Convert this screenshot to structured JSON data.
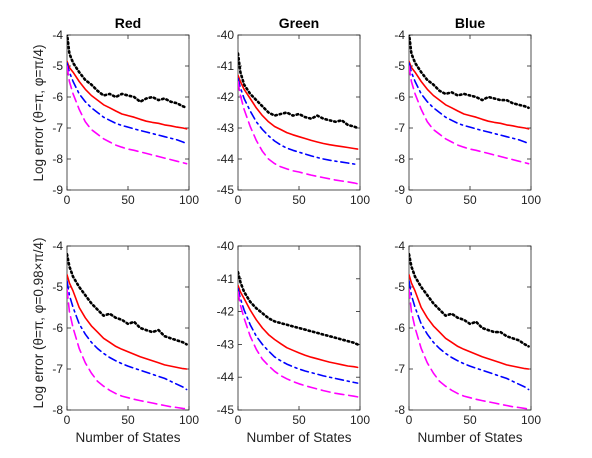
{
  "figure": {
    "ylabels": [
      "Log error (θ=π, φ=π/4)",
      "Log error (θ=π, φ=0.98×π/4)"
    ],
    "xlabel": "Number of States",
    "titles": [
      "Red",
      "Green",
      "Blue"
    ]
  },
  "chart_data": [
    {
      "type": "line",
      "title": "Red",
      "xlabel": "",
      "ylabel": "Log error (θ=π, φ=π/4)",
      "xlim": [
        0,
        100
      ],
      "ylim": [
        -9,
        -4
      ],
      "xticks": [
        0,
        50,
        100
      ],
      "yticks": [
        -9,
        -8,
        -7,
        -6,
        -5,
        -4
      ],
      "grid": false,
      "x": [
        0,
        2,
        5,
        10,
        15,
        20,
        25,
        30,
        35,
        40,
        45,
        50,
        55,
        60,
        65,
        70,
        75,
        80,
        85,
        90,
        95,
        98
      ],
      "series": [
        {
          "color": "#000000",
          "dash": "dotted",
          "values": [
            -3.95,
            -4.6,
            -4.9,
            -5.2,
            -5.45,
            -5.6,
            -5.8,
            -5.95,
            -5.9,
            -6.0,
            -5.9,
            -5.95,
            -6.0,
            -6.15,
            -6.05,
            -6.0,
            -6.1,
            -6.05,
            -6.15,
            -6.2,
            -6.3,
            -6.35
          ]
        },
        {
          "color": "#ff0000",
          "dash": "solid",
          "values": [
            -4.85,
            -5.05,
            -5.2,
            -5.5,
            -5.75,
            -5.95,
            -6.1,
            -6.25,
            -6.35,
            -6.45,
            -6.55,
            -6.6,
            -6.65,
            -6.72,
            -6.78,
            -6.82,
            -6.85,
            -6.9,
            -6.93,
            -6.97,
            -7.0,
            -7.03
          ]
        },
        {
          "color": "#0000ff",
          "dash": "dashdot",
          "values": [
            -4.9,
            -5.2,
            -5.5,
            -5.9,
            -6.15,
            -6.35,
            -6.5,
            -6.65,
            -6.75,
            -6.85,
            -6.92,
            -6.97,
            -7.03,
            -7.08,
            -7.13,
            -7.18,
            -7.23,
            -7.28,
            -7.33,
            -7.38,
            -7.45,
            -7.5
          ]
        },
        {
          "color": "#ff00ff",
          "dash": "dashed",
          "values": [
            -5.0,
            -5.5,
            -5.9,
            -6.4,
            -6.8,
            -7.05,
            -7.2,
            -7.35,
            -7.45,
            -7.55,
            -7.62,
            -7.68,
            -7.72,
            -7.77,
            -7.82,
            -7.87,
            -7.92,
            -7.97,
            -8.02,
            -8.07,
            -8.12,
            -8.15
          ]
        }
      ]
    },
    {
      "type": "line",
      "title": "Green",
      "xlabel": "",
      "ylabel": "",
      "xlim": [
        0,
        100
      ],
      "ylim": [
        -45,
        -40
      ],
      "xticks": [
        0,
        50,
        100
      ],
      "yticks": [
        -45,
        -44,
        -43,
        -42,
        -41,
        -40
      ],
      "grid": false,
      "x": [
        0,
        2,
        5,
        10,
        15,
        20,
        25,
        30,
        35,
        40,
        45,
        50,
        55,
        60,
        65,
        70,
        75,
        80,
        85,
        90,
        95,
        98
      ],
      "series": [
        {
          "color": "#000000",
          "dash": "dotted",
          "values": [
            -40.6,
            -41.2,
            -41.6,
            -41.9,
            -42.1,
            -42.3,
            -42.5,
            -42.6,
            -42.55,
            -42.5,
            -42.6,
            -42.55,
            -42.65,
            -42.7,
            -42.6,
            -42.7,
            -42.75,
            -42.8,
            -42.75,
            -42.9,
            -42.95,
            -43.0
          ]
        },
        {
          "color": "#ff0000",
          "dash": "solid",
          "values": [
            -41.3,
            -41.5,
            -41.75,
            -42.05,
            -42.35,
            -42.6,
            -42.8,
            -42.95,
            -43.05,
            -43.15,
            -43.22,
            -43.28,
            -43.34,
            -43.4,
            -43.45,
            -43.5,
            -43.54,
            -43.57,
            -43.6,
            -43.63,
            -43.66,
            -43.68
          ]
        },
        {
          "color": "#0000ff",
          "dash": "dashdot",
          "values": [
            -41.4,
            -41.7,
            -42.05,
            -42.45,
            -42.8,
            -43.05,
            -43.25,
            -43.42,
            -43.55,
            -43.65,
            -43.72,
            -43.78,
            -43.84,
            -43.9,
            -43.95,
            -44.0,
            -44.04,
            -44.07,
            -44.1,
            -44.13,
            -44.16,
            -44.18
          ]
        },
        {
          "color": "#ff00ff",
          "dash": "dashed",
          "values": [
            -41.5,
            -41.95,
            -42.4,
            -42.95,
            -43.4,
            -43.75,
            -44.0,
            -44.15,
            -44.25,
            -44.32,
            -44.38,
            -44.42,
            -44.47,
            -44.52,
            -44.56,
            -44.6,
            -44.64,
            -44.68,
            -44.71,
            -44.74,
            -44.77,
            -44.8
          ]
        }
      ]
    },
    {
      "type": "line",
      "title": "Blue",
      "xlabel": "",
      "ylabel": "",
      "xlim": [
        0,
        100
      ],
      "ylim": [
        -9,
        -4
      ],
      "xticks": [
        0,
        50,
        100
      ],
      "yticks": [
        -9,
        -8,
        -7,
        -6,
        -5,
        -4
      ],
      "grid": false,
      "x": [
        0,
        2,
        5,
        10,
        15,
        20,
        25,
        30,
        35,
        40,
        45,
        50,
        55,
        60,
        65,
        70,
        75,
        80,
        85,
        90,
        95,
        98
      ],
      "series": [
        {
          "color": "#000000",
          "dash": "dotted",
          "values": [
            -3.95,
            -4.6,
            -4.9,
            -5.2,
            -5.45,
            -5.6,
            -5.8,
            -5.9,
            -5.85,
            -5.95,
            -5.9,
            -5.95,
            -6.0,
            -6.1,
            -6.0,
            -6.05,
            -6.1,
            -6.1,
            -6.2,
            -6.25,
            -6.3,
            -6.35
          ]
        },
        {
          "color": "#ff0000",
          "dash": "solid",
          "values": [
            -4.85,
            -5.05,
            -5.2,
            -5.5,
            -5.75,
            -5.95,
            -6.1,
            -6.25,
            -6.35,
            -6.45,
            -6.55,
            -6.6,
            -6.65,
            -6.72,
            -6.78,
            -6.82,
            -6.85,
            -6.9,
            -6.93,
            -6.97,
            -7.0,
            -7.03
          ]
        },
        {
          "color": "#0000ff",
          "dash": "dashdot",
          "values": [
            -4.9,
            -5.2,
            -5.5,
            -5.9,
            -6.15,
            -6.35,
            -6.5,
            -6.65,
            -6.75,
            -6.85,
            -6.92,
            -6.97,
            -7.03,
            -7.08,
            -7.13,
            -7.18,
            -7.23,
            -7.28,
            -7.33,
            -7.38,
            -7.45,
            -7.5
          ]
        },
        {
          "color": "#ff00ff",
          "dash": "dashed",
          "values": [
            -5.0,
            -5.5,
            -5.9,
            -6.4,
            -6.8,
            -7.05,
            -7.2,
            -7.35,
            -7.45,
            -7.55,
            -7.62,
            -7.68,
            -7.72,
            -7.77,
            -7.82,
            -7.87,
            -7.92,
            -7.97,
            -8.02,
            -8.07,
            -8.12,
            -8.15
          ]
        }
      ]
    },
    {
      "type": "line",
      "title": "",
      "xlabel": "Number of States",
      "ylabel": "Log error (θ=π, φ=0.98×π/4)",
      "xlim": [
        0,
        100
      ],
      "ylim": [
        -8,
        -4
      ],
      "xticks": [
        0,
        50,
        100
      ],
      "yticks": [
        -8,
        -7,
        -6,
        -5,
        -4
      ],
      "grid": false,
      "x": [
        0,
        2,
        5,
        10,
        15,
        20,
        25,
        30,
        35,
        40,
        45,
        50,
        55,
        60,
        65,
        70,
        75,
        80,
        85,
        90,
        95,
        98
      ],
      "series": [
        {
          "color": "#000000",
          "dash": "dotted",
          "values": [
            -4.2,
            -4.5,
            -4.75,
            -5.0,
            -5.2,
            -5.4,
            -5.55,
            -5.7,
            -5.65,
            -5.75,
            -5.8,
            -5.9,
            -5.85,
            -6.0,
            -6.05,
            -6.1,
            -6.05,
            -6.2,
            -6.25,
            -6.3,
            -6.35,
            -6.4
          ]
        },
        {
          "color": "#ff0000",
          "dash": "solid",
          "values": [
            -4.7,
            -4.9,
            -5.1,
            -5.5,
            -5.75,
            -5.95,
            -6.1,
            -6.25,
            -6.35,
            -6.45,
            -6.52,
            -6.58,
            -6.64,
            -6.7,
            -6.75,
            -6.8,
            -6.85,
            -6.9,
            -6.93,
            -6.96,
            -6.99,
            -7.0
          ]
        },
        {
          "color": "#0000ff",
          "dash": "dashdot",
          "values": [
            -4.85,
            -5.2,
            -5.5,
            -5.9,
            -6.15,
            -6.35,
            -6.5,
            -6.62,
            -6.72,
            -6.8,
            -6.87,
            -6.93,
            -6.98,
            -7.03,
            -7.08,
            -7.13,
            -7.18,
            -7.23,
            -7.3,
            -7.37,
            -7.44,
            -7.5
          ]
        },
        {
          "color": "#ff00ff",
          "dash": "dashed",
          "values": [
            -5.05,
            -5.6,
            -6.0,
            -6.5,
            -6.85,
            -7.1,
            -7.3,
            -7.42,
            -7.52,
            -7.6,
            -7.66,
            -7.7,
            -7.74,
            -7.77,
            -7.8,
            -7.83,
            -7.86,
            -7.89,
            -7.92,
            -7.94,
            -7.96,
            -7.97
          ]
        }
      ]
    },
    {
      "type": "line",
      "title": "",
      "xlabel": "Number of States",
      "ylabel": "",
      "xlim": [
        0,
        100
      ],
      "ylim": [
        -45,
        -40
      ],
      "xticks": [
        0,
        50,
        100
      ],
      "yticks": [
        -45,
        -44,
        -43,
        -42,
        -41,
        -40
      ],
      "grid": false,
      "x": [
        0,
        2,
        5,
        10,
        15,
        20,
        25,
        30,
        35,
        40,
        45,
        50,
        55,
        60,
        65,
        70,
        75,
        80,
        85,
        90,
        95,
        98
      ],
      "series": [
        {
          "color": "#000000",
          "dash": "dotted",
          "values": [
            -40.8,
            -41.1,
            -41.4,
            -41.7,
            -41.9,
            -42.05,
            -42.2,
            -42.3,
            -42.35,
            -42.4,
            -42.45,
            -42.5,
            -42.55,
            -42.6,
            -42.65,
            -42.7,
            -42.75,
            -42.8,
            -42.85,
            -42.9,
            -42.95,
            -43.0
          ]
        },
        {
          "color": "#ff0000",
          "dash": "solid",
          "values": [
            -41.2,
            -41.4,
            -41.6,
            -41.95,
            -42.25,
            -42.5,
            -42.7,
            -42.85,
            -42.98,
            -43.1,
            -43.18,
            -43.26,
            -43.33,
            -43.39,
            -43.44,
            -43.49,
            -43.54,
            -43.58,
            -43.62,
            -43.66,
            -43.68,
            -43.7
          ]
        },
        {
          "color": "#0000ff",
          "dash": "dashdot",
          "values": [
            -41.3,
            -41.6,
            -41.95,
            -42.4,
            -42.75,
            -43.0,
            -43.2,
            -43.38,
            -43.5,
            -43.6,
            -43.68,
            -43.75,
            -43.81,
            -43.86,
            -43.91,
            -43.96,
            -44.0,
            -44.04,
            -44.08,
            -44.12,
            -44.16,
            -44.18
          ]
        },
        {
          "color": "#ff00ff",
          "dash": "dashed",
          "values": [
            -41.4,
            -41.8,
            -42.2,
            -42.75,
            -43.15,
            -43.45,
            -43.65,
            -43.82,
            -43.95,
            -44.05,
            -44.13,
            -44.2,
            -44.26,
            -44.31,
            -44.36,
            -44.41,
            -44.45,
            -44.49,
            -44.52,
            -44.55,
            -44.58,
            -44.6
          ]
        }
      ]
    },
    {
      "type": "line",
      "title": "",
      "xlabel": "Number of States",
      "ylabel": "",
      "xlim": [
        0,
        100
      ],
      "ylim": [
        -8,
        -4
      ],
      "xticks": [
        0,
        50,
        100
      ],
      "yticks": [
        -8,
        -7,
        -6,
        -5,
        -4
      ],
      "grid": false,
      "x": [
        0,
        2,
        5,
        10,
        15,
        20,
        25,
        30,
        35,
        40,
        45,
        50,
        55,
        60,
        65,
        70,
        75,
        80,
        85,
        90,
        95,
        98
      ],
      "series": [
        {
          "color": "#000000",
          "dash": "dotted",
          "values": [
            -4.2,
            -4.5,
            -4.75,
            -5.0,
            -5.2,
            -5.4,
            -5.55,
            -5.7,
            -5.65,
            -5.75,
            -5.8,
            -5.9,
            -5.85,
            -6.0,
            -6.05,
            -6.1,
            -6.1,
            -6.2,
            -6.25,
            -6.3,
            -6.4,
            -6.45
          ]
        },
        {
          "color": "#ff0000",
          "dash": "solid",
          "values": [
            -4.7,
            -4.9,
            -5.1,
            -5.5,
            -5.75,
            -5.95,
            -6.1,
            -6.25,
            -6.35,
            -6.45,
            -6.52,
            -6.58,
            -6.64,
            -6.7,
            -6.75,
            -6.8,
            -6.85,
            -6.9,
            -6.93,
            -6.96,
            -6.99,
            -7.0
          ]
        },
        {
          "color": "#0000ff",
          "dash": "dashdot",
          "values": [
            -4.85,
            -5.2,
            -5.5,
            -5.9,
            -6.15,
            -6.35,
            -6.5,
            -6.62,
            -6.72,
            -6.8,
            -6.87,
            -6.93,
            -6.98,
            -7.03,
            -7.08,
            -7.13,
            -7.18,
            -7.23,
            -7.3,
            -7.37,
            -7.44,
            -7.5
          ]
        },
        {
          "color": "#ff00ff",
          "dash": "dashed",
          "values": [
            -5.05,
            -5.6,
            -6.0,
            -6.5,
            -6.85,
            -7.1,
            -7.3,
            -7.42,
            -7.52,
            -7.6,
            -7.66,
            -7.7,
            -7.74,
            -7.77,
            -7.8,
            -7.83,
            -7.86,
            -7.89,
            -7.92,
            -7.94,
            -7.96,
            -7.98
          ]
        }
      ]
    }
  ]
}
